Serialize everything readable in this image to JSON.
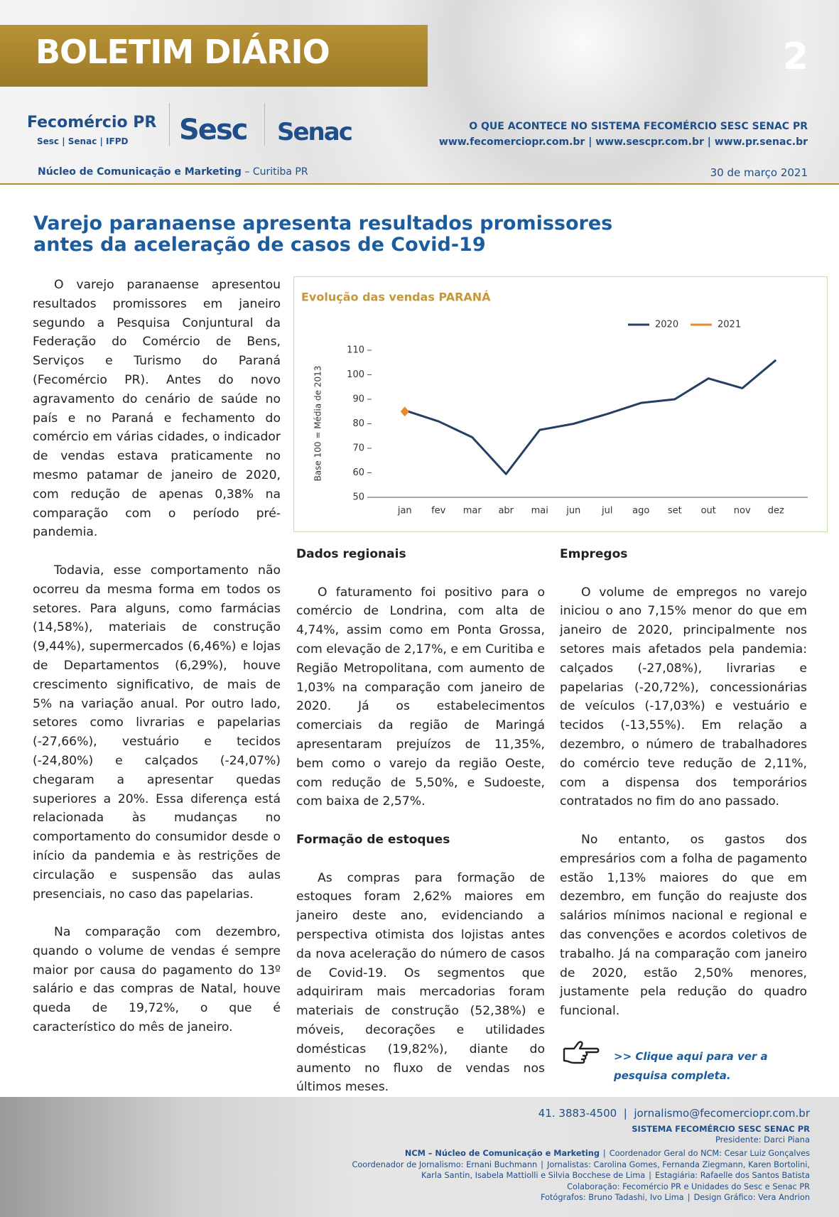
{
  "header": {
    "title": "BOLETIM DIÁRIO",
    "page_number": "2",
    "logo_fecomercio": "Fecomércio PR",
    "logo_fecomercio_sub": "Sesc | Senac | IFPD",
    "logo_sesc": "Sesc",
    "logo_senac": "Senac",
    "tagline": "O QUE ACONTECE NO SISTEMA FECOMÉRCIO SESC SENAC PR",
    "urls": "www.fecomerciopr.com.br | www.sescpr.com.br | www.pr.senac.br",
    "department": "Núcleo de Comunicação e Marketing",
    "city": "Curitiba PR",
    "date": "30 de março 2021"
  },
  "article": {
    "title": "Varejo paranaense apresenta resultados promissores antes da aceleração de casos de Covid-19",
    "intro_paragraphs": [
      "O varejo paranaense apresentou resultados promissores em janeiro segundo a Pesquisa Conjuntural da Federação do Comércio de Bens, Serviços e Turismo do Paraná (Fecomércio PR). Antes do novo agravamento do cenário de saúde no país e no Paraná e fechamento do comércio em várias cidades, o indicador de vendas estava praticamente no mesmo patamar de janeiro de 2020, com redução de apenas 0,38% na comparação com o período pré-pandemia.",
      "Todavia, esse comportamento não ocorreu da mesma forma em todos os setores. Para alguns, como farmácias (14,58%), materiais de construção (9,44%), supermercados (6,46%) e lojas de Departamentos (6,29%), houve crescimento significativo, de mais de 5% na variação anual. Por outro lado, setores como livrarias e papelarias (-27,66%), vestuário e tecidos (-24,80%) e calçados (-24,07%) chegaram a apresentar quedas superiores a 20%. Essa diferença está relacionada às mudanças no comportamento do consumidor desde o início da pandemia e às restrições de circulação e suspensão das aulas presenciais, no caso das papelarias.",
      "Na comparação com dezembro, quando o volume de vendas é sempre maior por causa do pagamento do 13º salário e das compras de Natal, houve queda de 19,72%, o que é característico do mês de janeiro."
    ],
    "sections": [
      {
        "heading": "Dados regionais",
        "paragraphs": [
          "O faturamento foi positivo para o comércio de Londrina, com alta de 4,74%, assim como em Ponta Grossa, com elevação de 2,17%, e em Curitiba e Região Metropolitana, com aumento de 1,03% na comparação com janeiro de 2020. Já os estabelecimentos comerciais da região de Maringá apresentaram prejuízos de 11,35%, bem como o varejo da região Oeste, com redução de 5,50%, e Sudoeste, com baixa de 2,57%."
        ]
      },
      {
        "heading": "Formação de estoques",
        "paragraphs": [
          "As compras para formação de estoques foram 2,62% maiores em janeiro deste ano, evidenciando a perspectiva otimista dos lojistas antes da nova aceleração do número de casos de Covid-19. Os segmentos que adquiriram mais mercadorias foram materiais de construção (52,38%) e móveis, decorações e utilidades domésticas (19,82%), diante do aumento no fluxo de vendas nos últimos meses."
        ]
      },
      {
        "heading": "Empregos",
        "paragraphs": [
          "O volume de empregos no varejo iniciou o ano 7,15% menor do que em janeiro de 2020, principalmente nos setores mais afetados pela pandemia: calçados (-27,08%), livrarias e papelarias (-20,72%), concessionárias de veículos (-17,03%) e vestuário e tecidos (-13,55%). Em relação a dezembro, o número de trabalhadores do comércio teve redução de 2,11%, com a dispensa dos temporários contratados no fim do ano passado.",
          "No entanto, os gastos dos empresários com a folha de pagamento estão 1,13% maiores do que em dezembro, em função do reajuste dos salários mínimos nacional e regional e das convenções e acordos coletivos de trabalho. Já na comparação com janeiro de 2020, estão 2,50% menores, justamente pela redução do quadro funcional."
        ]
      }
    ],
    "link": ">> Clique aqui para ver a pesquisa completa."
  },
  "chart_data": {
    "type": "line",
    "title": "Evolução das vendas PARANÁ",
    "y_label": "Base 100 = Média de 2013",
    "categories": [
      "jan",
      "fev",
      "mar",
      "abr",
      "mai",
      "jun",
      "jul",
      "ago",
      "set",
      "out",
      "nov",
      "dez"
    ],
    "series": [
      {
        "name": "2020",
        "color": "#243f61",
        "values": [
          85.5,
          81,
          74.5,
          59.5,
          77.5,
          80,
          84,
          88.5,
          90,
          98.5,
          94.5,
          106
        ]
      },
      {
        "name": "2021",
        "color": "#e8892a",
        "values": [
          85,
          null,
          null,
          null,
          null,
          null,
          null,
          null,
          null,
          null,
          null,
          null
        ]
      }
    ],
    "ylim": [
      50,
      110
    ],
    "yticks": [
      50,
      60,
      70,
      80,
      90,
      100,
      110
    ]
  },
  "footer": {
    "phone": "41. 3883-4500",
    "email": "jornalismo@fecomerciopr.com.br",
    "org": "SISTEMA FECOMÉRCIO SESC SENAC PR",
    "president": "Presidente: Darci Piana",
    "credits": [
      "NCM – Núcleo de Comunicação e Marketing",
      "Coordenador Geral do NCM: Cesar Luiz Gonçalves",
      "Coordenador de Jornalismo: Ernani Buchmann",
      "Jornalistas: Carolina Gomes, Fernanda Ziegmann, Karen Bortolini, Karla Santin, Isabela Mattiolli e Silvia Bocchese de Lima",
      "Estagiária: Rafaelle dos Santos Batista",
      "Colaboração: Fecomércio PR e Unidades do Sesc e Senac PR",
      "Fotógrafos: Bruno Tadashi, Ivo Lima",
      "Design Gráfico: Vera Andrion"
    ]
  }
}
